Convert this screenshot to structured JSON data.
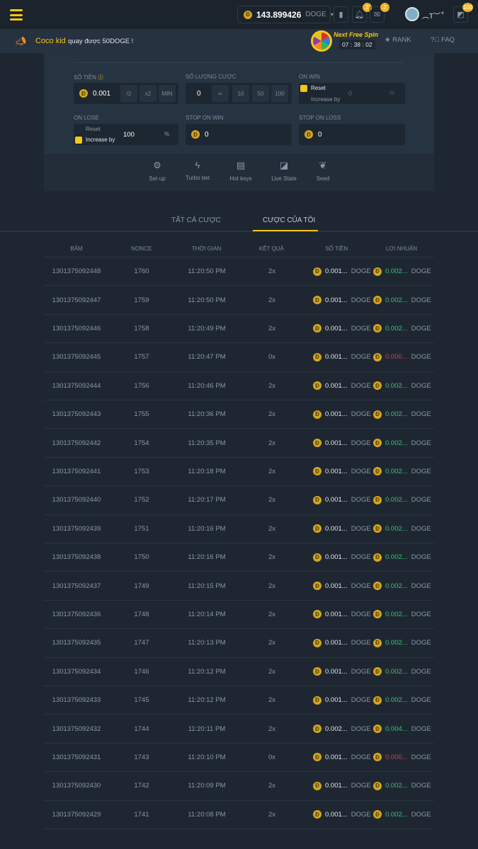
{
  "header": {
    "balance": "143.899426",
    "currency": "DOGE",
    "notif_count": "2",
    "mail_count": "2",
    "username": "︵T︶",
    "level_badge": "100"
  },
  "announcement": {
    "user": "Coco kid",
    "text": "quay được 50DOGE !",
    "spin_title": "Next Free Spin",
    "timer": [
      "07",
      "38",
      "02"
    ],
    "rank": "RANK",
    "faq": "FAQ"
  },
  "bet": {
    "amount_label": "SỐ TIỀN",
    "amount": "0.001",
    "half": "/2",
    "double": "x2",
    "min": "MIN",
    "count_label": "SỐ LƯỢNG CƯỢC",
    "count": "0",
    "count_opts": [
      "∞",
      "10",
      "50",
      "100"
    ],
    "on_win_label": "ON WIN",
    "on_win_reset": "Reset",
    "on_win_increase": "Increase by",
    "on_win_value": "0",
    "percent": "%",
    "on_lose_label": "ON LOSE",
    "on_lose_reset": "Reset",
    "on_lose_increase": "Increase by",
    "on_lose_value": "100",
    "stop_win_label": "STOP ON WIN",
    "stop_win": "0",
    "stop_loss_label": "STOP ON LOSS",
    "stop_loss": "0"
  },
  "tools": [
    "Set up",
    "Turbo bet",
    "Hot keys",
    "Live State",
    "Seed"
  ],
  "tabs": [
    "TẤT CẢ CƯỢC",
    "CƯỢC CỦA TÔI"
  ],
  "table": {
    "headers": [
      "BĂM",
      "NONCE",
      "THỜI GIAN",
      "KẾT QUẢ",
      "SỐ TIỀN",
      "LỢI NHUẬN"
    ],
    "unit": "DOGE",
    "rows": [
      [
        "1301375092448",
        "1760",
        "11:20:50 PM",
        "2x",
        "0.001...",
        "0.002...",
        "win"
      ],
      [
        "1301375092447",
        "1759",
        "11:20:50 PM",
        "2x",
        "0.001...",
        "0.002...",
        "win"
      ],
      [
        "1301375092446",
        "1758",
        "11:20:49 PM",
        "2x",
        "0.001...",
        "0.002...",
        "win"
      ],
      [
        "1301375092445",
        "1757",
        "11:20:47 PM",
        "0x",
        "0.001...",
        "0.000...",
        "loss"
      ],
      [
        "1301375092444",
        "1756",
        "11:20:46 PM",
        "2x",
        "0.001...",
        "0.002...",
        "win"
      ],
      [
        "1301375092443",
        "1755",
        "11:20:36 PM",
        "2x",
        "0.001...",
        "0.002...",
        "win"
      ],
      [
        "1301375092442",
        "1754",
        "11:20:35 PM",
        "2x",
        "0.001...",
        "0.002...",
        "win"
      ],
      [
        "1301375092441",
        "1753",
        "11:20:18 PM",
        "2x",
        "0.001...",
        "0.002...",
        "win"
      ],
      [
        "1301375092440",
        "1752",
        "11:20:17 PM",
        "2x",
        "0.001...",
        "0.002...",
        "win"
      ],
      [
        "1301375092439",
        "1751",
        "11:20:16 PM",
        "2x",
        "0.001...",
        "0.002...",
        "win"
      ],
      [
        "1301375092438",
        "1750",
        "11:20:16 PM",
        "2x",
        "0.001...",
        "0.002...",
        "win"
      ],
      [
        "1301375092437",
        "1749",
        "11:20:15 PM",
        "2x",
        "0.001...",
        "0.002...",
        "win"
      ],
      [
        "1301375092436",
        "1748",
        "11:20:14 PM",
        "2x",
        "0.001...",
        "0.002...",
        "win"
      ],
      [
        "1301375092435",
        "1747",
        "11:20:13 PM",
        "2x",
        "0.001...",
        "0.002...",
        "win"
      ],
      [
        "1301375092434",
        "1746",
        "11:20:12 PM",
        "2x",
        "0.001...",
        "0.002...",
        "win"
      ],
      [
        "1301375092433",
        "1745",
        "11:20:12 PM",
        "2x",
        "0.001...",
        "0.002...",
        "win"
      ],
      [
        "1301375092432",
        "1744",
        "11:20:11 PM",
        "2x",
        "0.002...",
        "0.004...",
        "win"
      ],
      [
        "1301375092431",
        "1743",
        "11:20:10 PM",
        "0x",
        "0.001...",
        "0.000...",
        "loss"
      ],
      [
        "1301375092430",
        "1742",
        "11:20:09 PM",
        "2x",
        "0.001...",
        "0.002...",
        "win"
      ],
      [
        "1301375092429",
        "1741",
        "11:20:08 PM",
        "2x",
        "0.001...",
        "0.002...",
        "win"
      ]
    ]
  },
  "colors": {
    "accent": "#f5c518",
    "win": "#3ec178",
    "loss": "#c2415a"
  }
}
